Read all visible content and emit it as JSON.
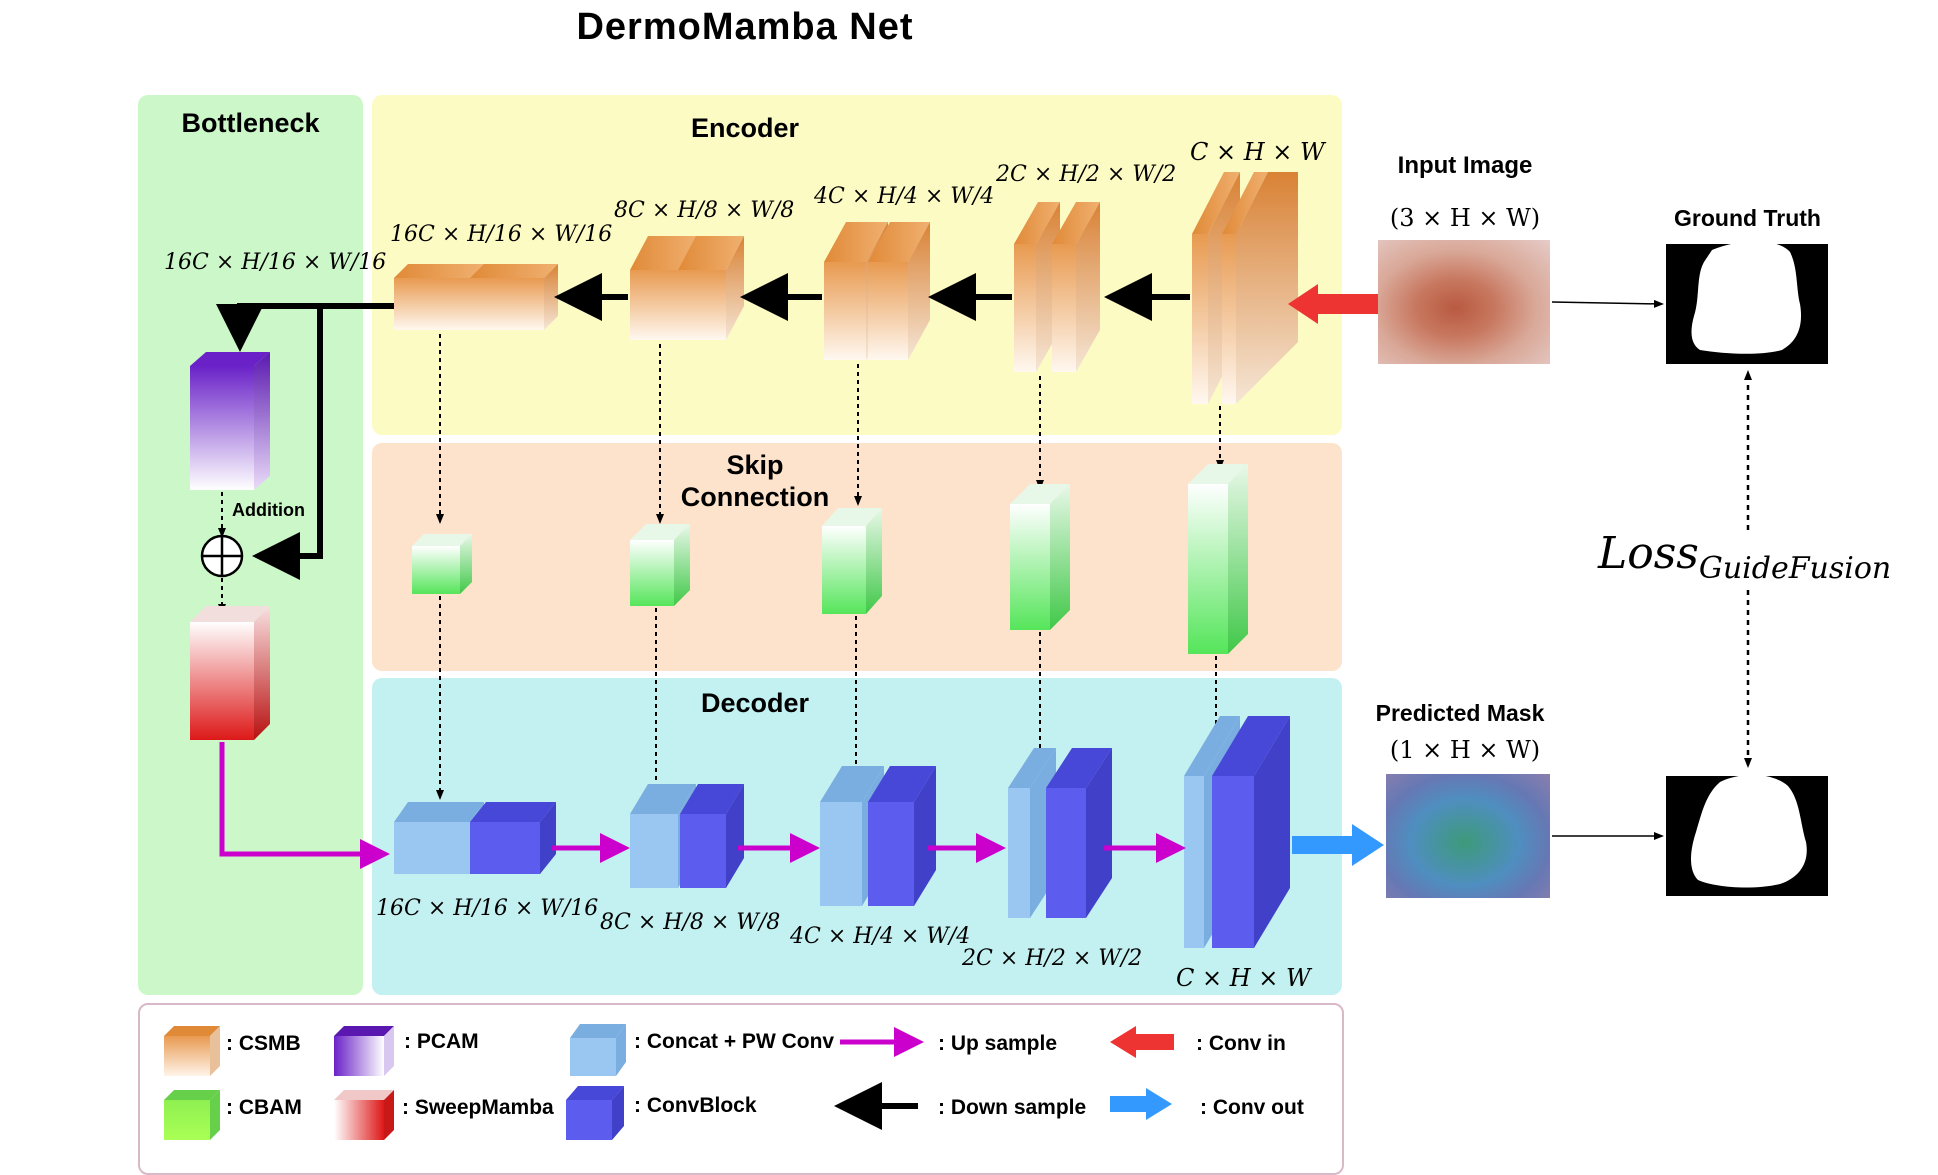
{
  "title": "DermoMamba Net",
  "regions": {
    "bottleneck": "Bottleneck",
    "encoder": "Encoder",
    "skip_line1": "Skip",
    "skip_line2": "Connection",
    "decoder": "Decoder"
  },
  "encoder_dims": [
    "16C × H/16 × W/16",
    "8C × H/8 × W/8",
    "4C × H/4 × W/4",
    "2C × H/2 × W/2",
    "C × H × W"
  ],
  "decoder_dims": [
    "16C × H/16 × W/16",
    "8C × H/8 × W/8",
    "4C × H/4 × W/4",
    "2C × H/2 × W/2",
    "C × H × W"
  ],
  "bottleneck_dim": "16C × H/16 × W/16",
  "addition_label": "Addition",
  "input": {
    "label": "Input Image",
    "dim": "(3 × H × W)"
  },
  "ground_truth": {
    "label": "Ground Truth"
  },
  "predicted": {
    "label": "Predicted Mask",
    "dim": "(1 × H × W)"
  },
  "loss": {
    "main": "Loss",
    "sub": "GuideFusion"
  },
  "legend": {
    "csmb": ": CSMB",
    "pcam": ": PCAM",
    "concat": ": Concat + PW Conv",
    "upsample": ": Up sample",
    "convin": ": Conv in",
    "cbam": ": CBAM",
    "sweepmamba": ": SweepMamba",
    "convblock": ": ConvBlock",
    "downsample": ": Down sample",
    "convout": ": Conv out"
  },
  "colors": {
    "bottleneck_bg": "#ccf7c8",
    "encoder_bg": "#fdfbc4",
    "skip_bg": "#fde3cb",
    "decoder_bg": "#c3f0f0",
    "csmb": "#e89a50",
    "cbam": "#66e66a",
    "pcam": "#7a2fd0",
    "sweepmamba": "#e02020",
    "concat": "#8fbfee",
    "convblock": "#5c5cef",
    "upsample": "#cc00cc",
    "downsample": "#000000",
    "convin": "#ee3333",
    "convout": "#3399ff"
  }
}
